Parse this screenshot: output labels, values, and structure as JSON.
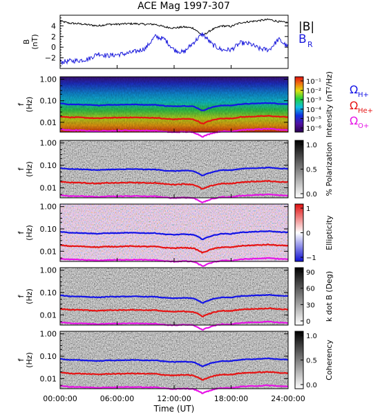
{
  "figure": {
    "title": "ACE Mag 1997-307",
    "x_axis_label": "Time (UT)"
  },
  "colors": {
    "b_mag": "#000000",
    "b_r": "#1a1adc",
    "h_plus": "#1414e6",
    "he_plus": "#e61414",
    "o_plus": "#e614e6",
    "axis": "#000000"
  },
  "chart_data": [
    {
      "type": "line",
      "panel": "field",
      "ylabel": "B (nT)",
      "ylim": [
        -4,
        6
      ],
      "yticks": [
        -2,
        0,
        2,
        4
      ],
      "xlim": [
        0,
        24
      ],
      "xticks": [
        "00:00:00",
        "06:00:00",
        "12:00:00",
        "18:00:00",
        "24:00:00"
      ],
      "series": [
        {
          "name": "|B|",
          "color": "#000000",
          "x": [
            0,
            1,
            2,
            3,
            4,
            5,
            6,
            7,
            8,
            9,
            10,
            11,
            12,
            13,
            14,
            15,
            16,
            17,
            18,
            19,
            20,
            21,
            22,
            23,
            24
          ],
          "values": [
            4.9,
            4.5,
            4.4,
            4.2,
            4.0,
            4.3,
            4.3,
            4.4,
            4.4,
            4.3,
            4.3,
            3.8,
            3.6,
            3.8,
            3.6,
            2.2,
            3.3,
            4.0,
            3.9,
            4.6,
            4.8,
            5.0,
            5.2,
            4.8,
            4.6
          ]
        },
        {
          "name": "B_R",
          "color": "#1a1adc",
          "x": [
            0,
            1,
            2,
            3,
            4,
            5,
            6,
            7,
            8,
            9,
            10,
            11,
            12,
            13,
            14,
            15,
            16,
            17,
            18,
            19,
            20,
            21,
            22,
            23,
            24
          ],
          "values": [
            -2.8,
            -2.6,
            -2.5,
            -2.2,
            -1.2,
            -1.6,
            -1.4,
            -1.2,
            -0.8,
            -0.2,
            2.0,
            1.5,
            -0.5,
            -1.0,
            0.8,
            2.5,
            0.5,
            -0.5,
            -0.5,
            0.8,
            0.6,
            -0.3,
            -0.5,
            1.5,
            0.0
          ]
        }
      ]
    },
    {
      "type": "heatmap",
      "panel": "intensity",
      "ylabel": "f (Hz)",
      "yticks": [
        "1.00",
        "0.10",
        "0.01"
      ],
      "colorbar_label": "Intensity (nT²/Hz)",
      "colorbar_ticks": [
        "10⁻¹",
        "10⁻²",
        "10⁻³",
        "10⁻⁴",
        "10⁻⁵",
        "10⁻⁶"
      ],
      "colormap": "rainbow"
    },
    {
      "type": "heatmap",
      "panel": "polarization",
      "ylabel": "f (Hz)",
      "yticks": [
        "1.00",
        "0.10",
        "0.01"
      ],
      "colorbar_label": "% Polarization",
      "colorbar_ticks": [
        "1.0",
        "0.5",
        "0.0"
      ],
      "colormap": "gray"
    },
    {
      "type": "heatmap",
      "panel": "ellipticity",
      "ylabel": "f (Hz)",
      "yticks": [
        "1.00",
        "0.10",
        "0.01"
      ],
      "colorbar_label": "Ellipticity",
      "colorbar_ticks": [
        "1",
        "0",
        "−1"
      ],
      "colormap": "bluewhitered"
    },
    {
      "type": "heatmap",
      "panel": "kdotb",
      "ylabel": "f (Hz)",
      "yticks": [
        "1.00",
        "0.10",
        "0.01"
      ],
      "colorbar_label": "k dot B (Deg)",
      "colorbar_ticks": [
        "90",
        "60",
        "30",
        "0"
      ],
      "colormap": "gray"
    },
    {
      "type": "heatmap",
      "panel": "coherency",
      "ylabel": "f (Hz)",
      "yticks": [
        "1.00",
        "0.10",
        "0.01"
      ],
      "colorbar_label": "Coherency",
      "colorbar_ticks": [
        "1.0",
        "0.5",
        "0.0"
      ],
      "colormap": "gray"
    }
  ],
  "legend": {
    "h": "Ω",
    "h_sub": "H+",
    "he": "Ω",
    "he_sub": "He+",
    "o": "Ω",
    "o_sub": "O+"
  },
  "gyro_hz": {
    "x": [
      0,
      1,
      2,
      3,
      4,
      5,
      6,
      7,
      8,
      9,
      10,
      11,
      12,
      13,
      14,
      15,
      16,
      17,
      18,
      19,
      20,
      21,
      22,
      23,
      24
    ],
    "h_plus": [
      0.075,
      0.068,
      0.067,
      0.064,
      0.061,
      0.065,
      0.065,
      0.067,
      0.067,
      0.065,
      0.065,
      0.058,
      0.055,
      0.058,
      0.055,
      0.034,
      0.05,
      0.061,
      0.06,
      0.07,
      0.073,
      0.076,
      0.079,
      0.073,
      0.07
    ]
  }
}
